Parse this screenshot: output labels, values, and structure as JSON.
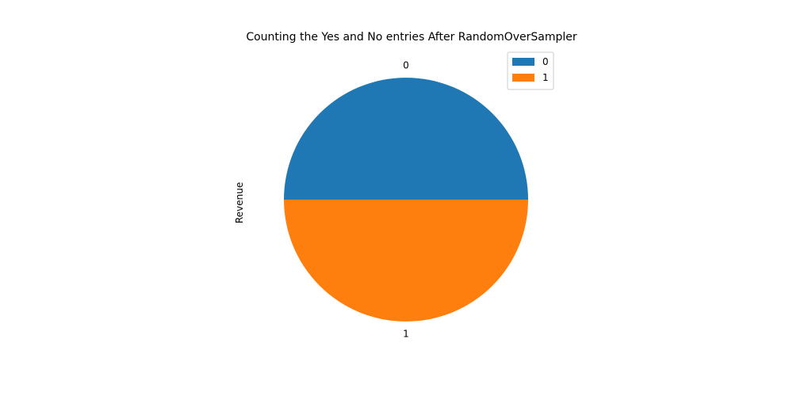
{
  "chart_data": {
    "type": "pie",
    "title": "Counting the Yes and No entries After RandomOverSampler",
    "ylabel": "Revenue",
    "categories": [
      "0",
      "1"
    ],
    "values": [
      1,
      1
    ],
    "colors": [
      "#1f77b4",
      "#ff7f0e"
    ],
    "legend": {
      "placement": "top-right",
      "entries": [
        "0",
        "1"
      ]
    }
  }
}
